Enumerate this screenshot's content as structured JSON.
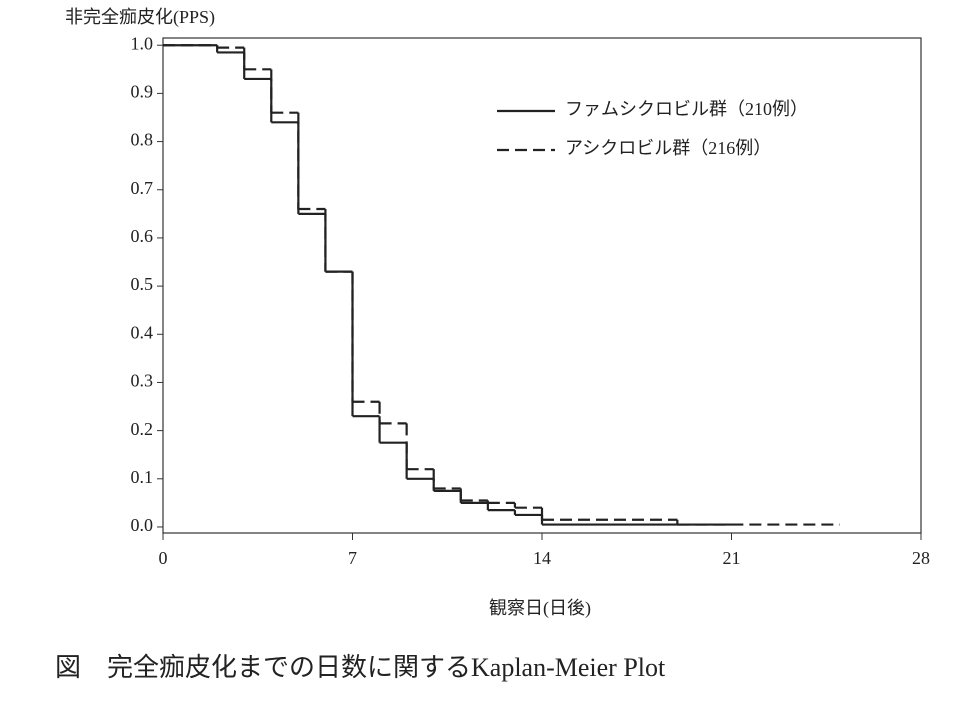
{
  "chart_data": {
    "type": "step",
    "y_label": "非完全痂皮化(PPS)",
    "x_label": "観察日(日後)",
    "caption": "図　完全痂皮化までの日数に関するKaplan-Meier Plot",
    "xlim": [
      0,
      28
    ],
    "xticks": [
      0,
      7,
      14,
      21,
      28
    ],
    "ylim": [
      -0.0125,
      1.015
    ],
    "yticks": [
      {
        "value": 1,
        "label": "1.0"
      },
      0.9,
      0.8,
      0.7,
      0.6,
      0.5,
      0.4,
      0.3,
      0.2,
      0.1,
      {
        "value": 0,
        "label": "0.0"
      }
    ],
    "grid": false,
    "legend": "upper right",
    "series": [
      {
        "name": "ファムシクロビル群（210例）",
        "color": "#222222",
        "style": "solid",
        "x": [
          0,
          2,
          3,
          4,
          5,
          6,
          7,
          8,
          9,
          10,
          11,
          12,
          13,
          14
        ],
        "values": [
          1,
          0.985,
          0.93,
          0.84,
          0.65,
          0.53,
          0.23,
          0.175,
          0.1,
          0.075,
          0.05,
          0.035,
          0.025,
          0.005
        ],
        "end": 21
      },
      {
        "name": "アシクロビル群（216例）",
        "color": "#222222",
        "style": "dashed",
        "x": [
          0,
          2,
          3,
          4,
          5,
          6,
          7,
          8,
          9,
          10,
          11,
          12,
          13,
          14,
          19
        ],
        "values": [
          1,
          0.995,
          0.95,
          0.86,
          0.66,
          0.53,
          0.26,
          0.215,
          0.12,
          0.08,
          0.055,
          0.05,
          0.04,
          0.015,
          0.005
        ],
        "end": 25
      }
    ]
  }
}
